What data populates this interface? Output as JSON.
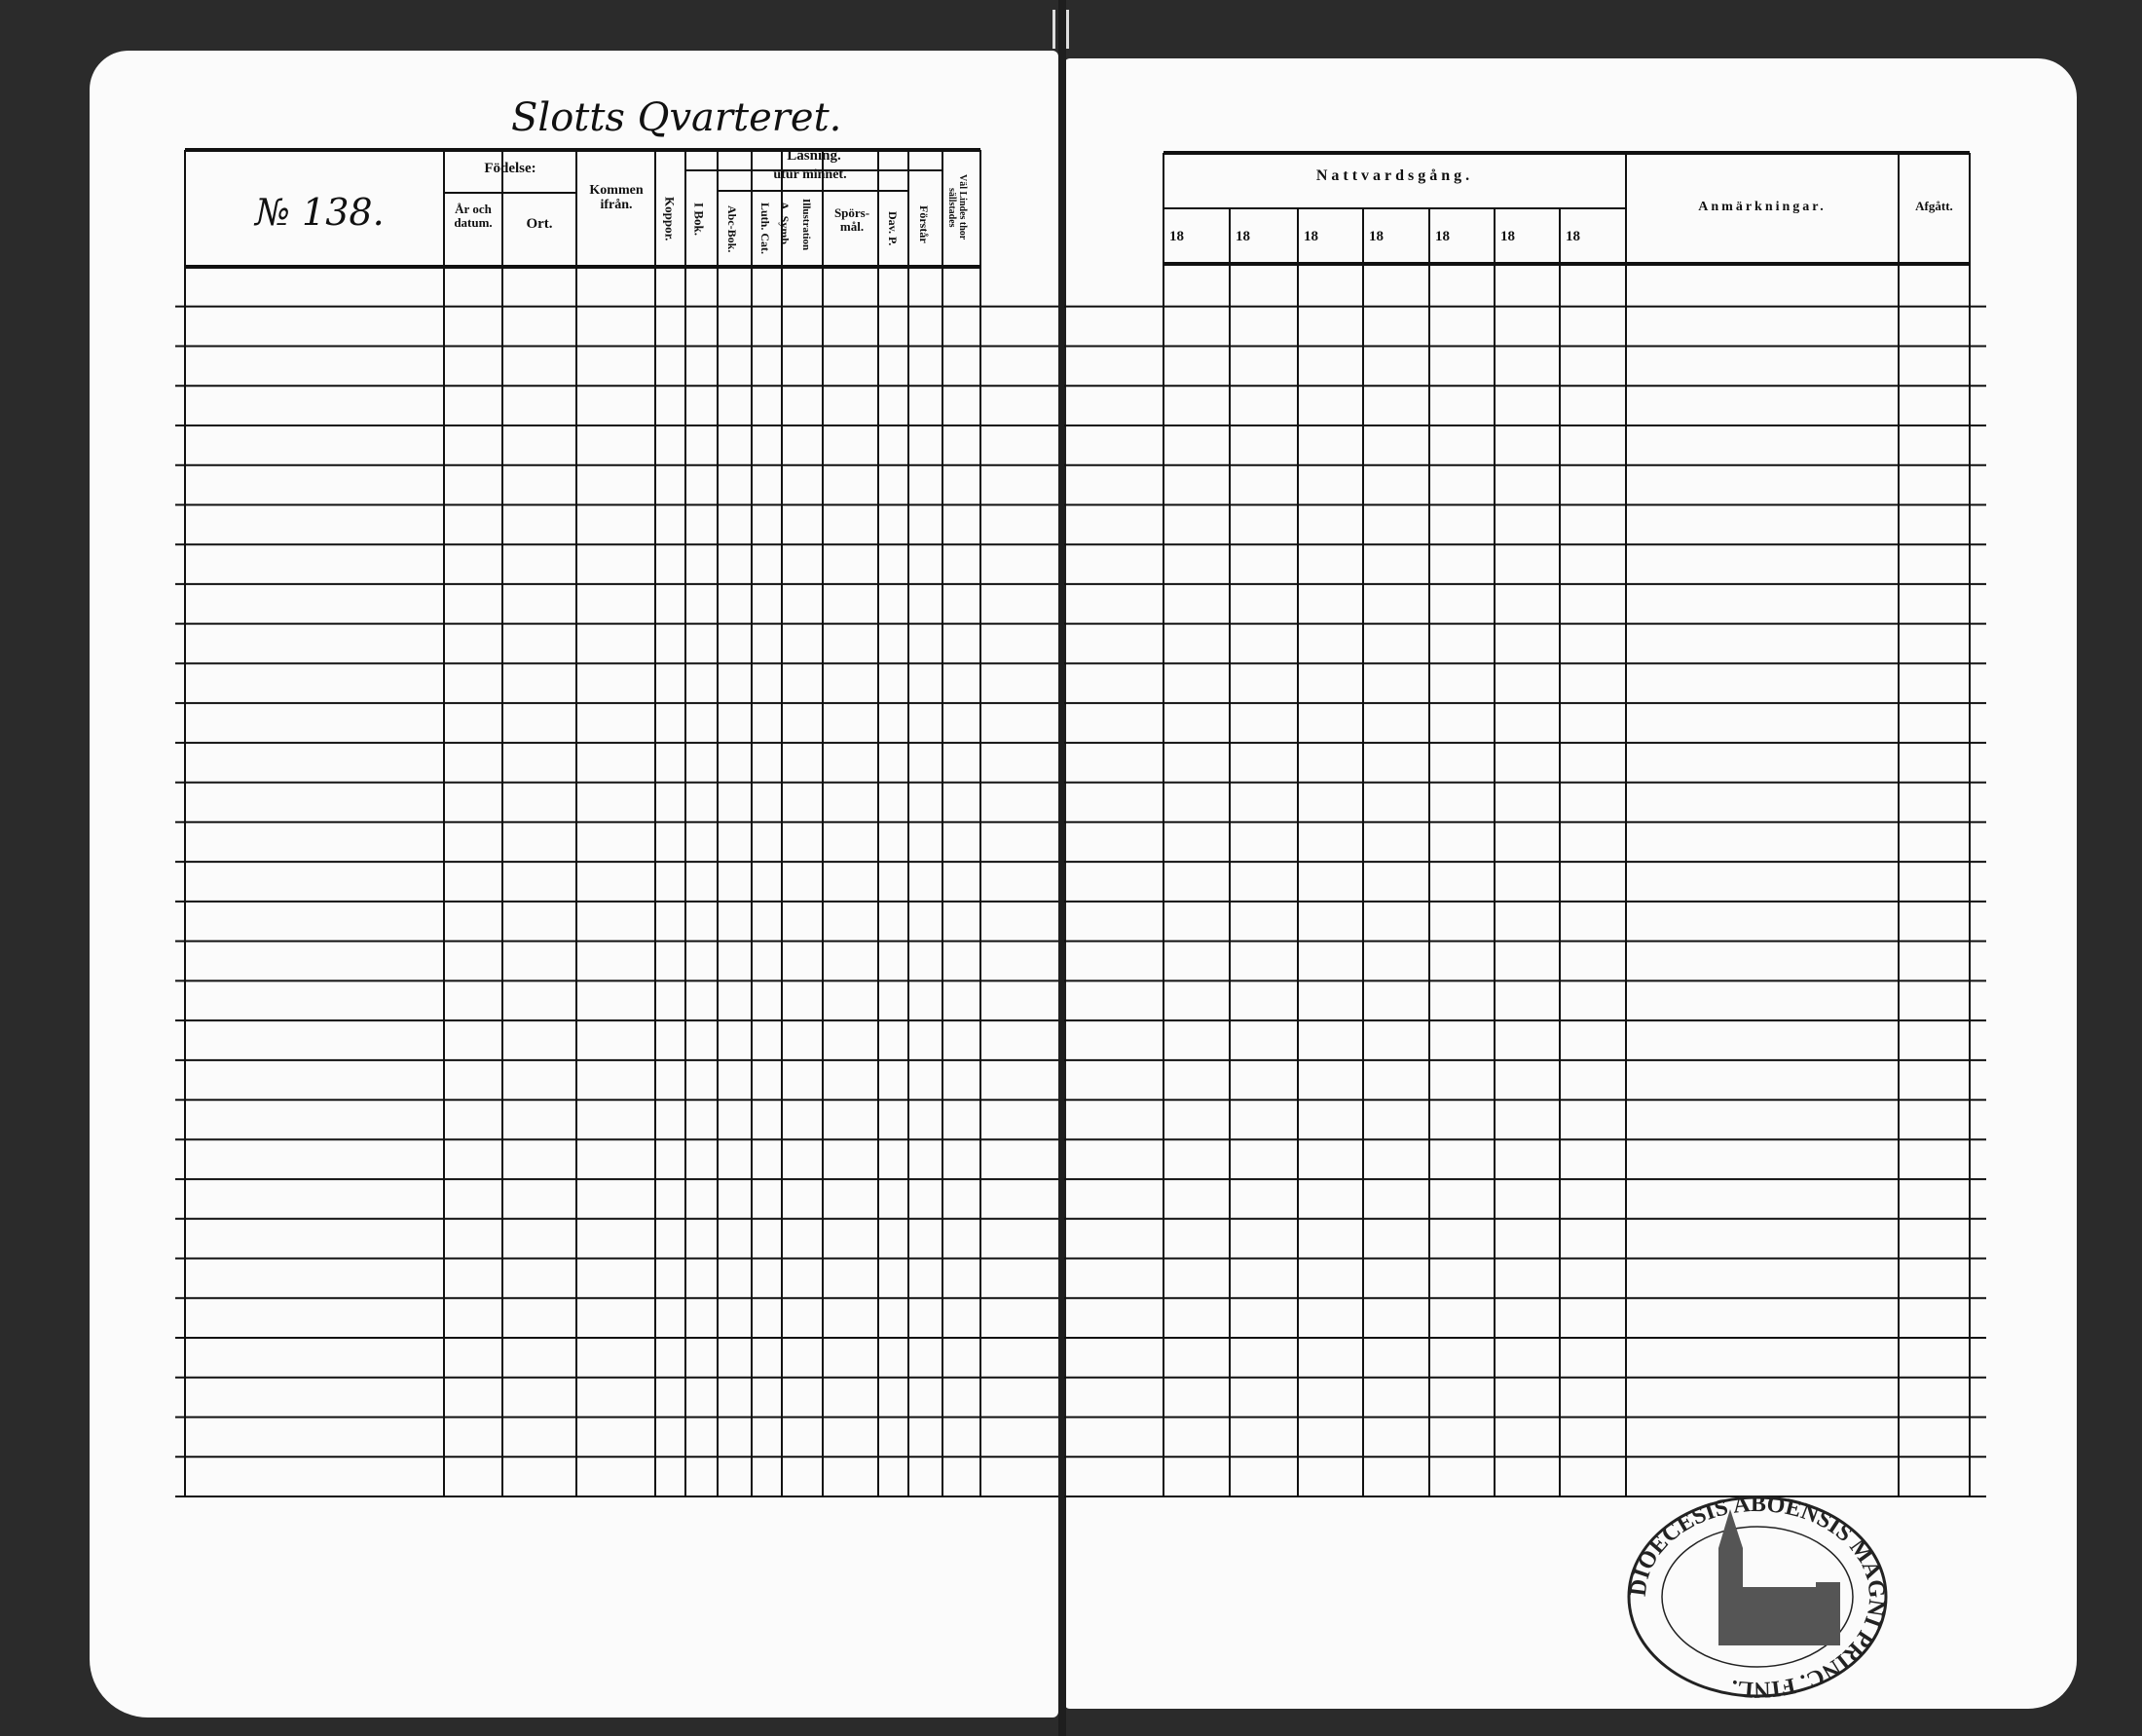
{
  "left_page": {
    "district_heading": "Slotts Qvarteret.",
    "house_number": "№ 138.",
    "columns": {
      "fodelse": "Födelse:",
      "ar_och_datum": "År och datum.",
      "ort": "Ort.",
      "kommen_ifran": "Kommen ifrån.",
      "koppor": "Koppor.",
      "lasning": "Läsning.",
      "i_bok": "I Bok.",
      "utur_minnet": "utur minnet.",
      "abc_bok": "Abc-Bok.",
      "luth_cat": "Luth. Cat.",
      "a_symb": "A. Symb.",
      "illustration": "Illustration",
      "sporsmal": "Spörs-mål.",
      "dav_p": "Dav. P.",
      "forstar": "Förstår",
      "val_ledes_thor": "Väl Lindes thor sällstades"
    }
  },
  "right_page": {
    "columns": {
      "nattvardsgang": "Nattvardsgång.",
      "years": [
        "18",
        "18",
        "18",
        "18",
        "18",
        "18",
        "18"
      ],
      "anmarkningar": "Anmärkningar.",
      "afgatt": "Afgått."
    }
  },
  "stamp": {
    "text": "DIOECESIS ABOENSIS MAGNI PRINC. FINL."
  },
  "colors": {
    "ink": "#111111",
    "paper": "#fbfbfb",
    "background": "#2b2b2b"
  }
}
